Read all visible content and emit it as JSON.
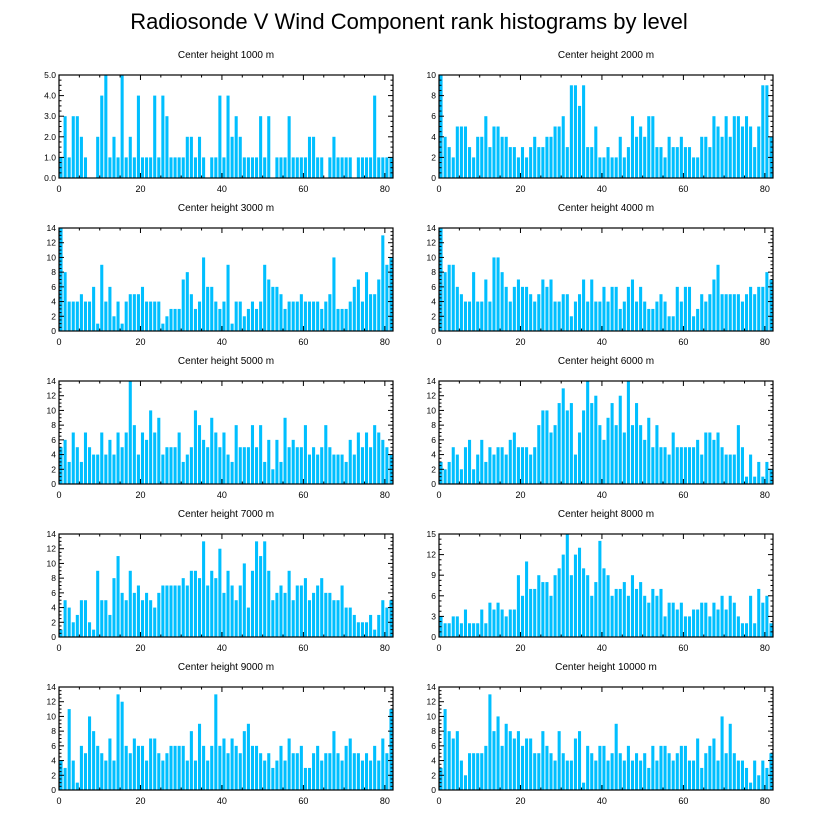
{
  "title": "Radiosonde V Wind Component rank histograms by level",
  "colors": {
    "bar": "#00bfff",
    "axis": "#000000",
    "background": "#ffffff"
  },
  "chart_data": [
    {
      "type": "bar",
      "title": "Center height 1000 m",
      "xlabel": "",
      "ylabel": "",
      "xlim": [
        0,
        82
      ],
      "ylim": [
        0,
        5
      ],
      "xticks": [
        0,
        20,
        40,
        60,
        80
      ],
      "yticks": [
        0,
        1,
        2,
        3,
        4,
        5
      ],
      "ytick_labels": [
        "0.0",
        "1.0",
        "2.0",
        "3.0",
        "4.0",
        "5.0"
      ],
      "values": [
        1,
        3,
        1,
        3,
        3,
        2,
        1,
        0,
        0,
        2,
        4,
        5,
        1,
        2,
        1,
        5,
        1,
        2,
        1,
        4,
        1,
        1,
        1,
        4,
        1,
        4,
        3,
        1,
        1,
        1,
        1,
        2,
        2,
        1,
        2,
        1,
        0,
        1,
        1,
        4,
        1,
        4,
        2,
        3,
        2,
        1,
        1,
        1,
        1,
        3,
        1,
        3,
        0,
        1,
        1,
        1,
        3,
        1,
        1,
        1,
        1,
        2,
        2,
        1,
        1,
        0,
        1,
        2,
        1,
        1,
        1,
        1,
        0,
        1,
        1,
        1,
        1,
        4,
        1,
        1,
        1,
        1
      ]
    },
    {
      "type": "bar",
      "title": "Center height 2000 m",
      "xlabel": "",
      "ylabel": "",
      "xlim": [
        0,
        82
      ],
      "ylim": [
        0,
        10
      ],
      "xticks": [
        0,
        20,
        40,
        60,
        80
      ],
      "yticks": [
        0,
        2,
        4,
        6,
        8,
        10
      ],
      "ytick_labels": [
        "0",
        "2",
        "4",
        "6",
        "8",
        "10"
      ],
      "values": [
        10,
        4,
        3,
        2,
        5,
        5,
        5,
        3,
        2,
        4,
        4,
        6,
        3,
        5,
        5,
        4,
        4,
        3,
        3,
        2,
        3,
        2,
        3,
        4,
        3,
        3,
        4,
        4,
        5,
        5,
        6,
        3,
        9,
        9,
        7,
        9,
        3,
        3,
        5,
        2,
        2,
        3,
        2,
        2,
        4,
        2,
        3,
        6,
        4,
        5,
        4,
        6,
        6,
        3,
        3,
        2,
        4,
        3,
        3,
        4,
        3,
        3,
        2,
        2,
        4,
        4,
        3,
        6,
        5,
        4,
        6,
        4,
        6,
        6,
        5,
        6,
        5,
        3,
        5,
        9,
        9,
        4
      ]
    },
    {
      "type": "bar",
      "title": "Center height 3000 m",
      "xlabel": "",
      "ylabel": "",
      "xlim": [
        0,
        82
      ],
      "ylim": [
        0,
        14
      ],
      "xticks": [
        0,
        20,
        40,
        60,
        80
      ],
      "yticks": [
        0,
        2,
        4,
        6,
        8,
        10,
        12,
        14
      ],
      "ytick_labels": [
        "0",
        "2",
        "4",
        "6",
        "8",
        "10",
        "12",
        "14"
      ],
      "values": [
        14,
        8,
        4,
        4,
        4,
        5,
        4,
        4,
        6,
        1,
        9,
        4,
        6,
        2,
        4,
        1,
        4,
        5,
        5,
        5,
        6,
        4,
        4,
        4,
        4,
        1,
        2,
        3,
        3,
        3,
        7,
        8,
        5,
        3,
        4,
        10,
        6,
        6,
        4,
        3,
        4,
        9,
        1,
        4,
        4,
        2,
        3,
        4,
        3,
        4,
        9,
        7,
        6,
        6,
        5,
        3,
        4,
        4,
        4,
        5,
        4,
        4,
        4,
        4,
        3,
        4,
        5,
        10,
        3,
        3,
        3,
        4,
        6,
        7,
        4,
        8,
        5,
        5,
        7,
        13,
        9,
        10
      ]
    },
    {
      "type": "bar",
      "title": "Center height 4000 m",
      "xlabel": "",
      "ylabel": "",
      "xlim": [
        0,
        82
      ],
      "ylim": [
        0,
        14
      ],
      "xticks": [
        0,
        20,
        40,
        60,
        80
      ],
      "yticks": [
        0,
        2,
        4,
        6,
        8,
        10,
        12,
        14
      ],
      "ytick_labels": [
        "0",
        "2",
        "4",
        "6",
        "8",
        "10",
        "12",
        "14"
      ],
      "values": [
        14,
        8,
        9,
        9,
        6,
        5,
        4,
        4,
        8,
        4,
        4,
        7,
        4,
        10,
        10,
        8,
        6,
        4,
        6,
        7,
        6,
        6,
        5,
        4,
        5,
        7,
        6,
        7,
        4,
        4,
        5,
        5,
        2,
        4,
        5,
        7,
        4,
        7,
        4,
        4,
        6,
        4,
        6,
        6,
        3,
        4,
        6,
        7,
        4,
        6,
        4,
        3,
        3,
        4,
        5,
        4,
        2,
        2,
        6,
        4,
        6,
        6,
        2,
        3,
        5,
        4,
        5,
        7,
        9,
        5,
        5,
        5,
        5,
        5,
        4,
        5,
        6,
        5,
        6,
        6,
        8,
        7
      ]
    },
    {
      "type": "bar",
      "title": "Center height 5000 m",
      "xlabel": "",
      "ylabel": "",
      "xlim": [
        0,
        82
      ],
      "ylim": [
        0,
        14
      ],
      "xticks": [
        0,
        20,
        40,
        60,
        80
      ],
      "yticks": [
        0,
        2,
        4,
        6,
        8,
        10,
        12,
        14
      ],
      "ytick_labels": [
        "0",
        "2",
        "4",
        "6",
        "8",
        "10",
        "12",
        "14"
      ],
      "values": [
        5,
        6,
        3,
        7,
        5,
        3,
        7,
        5,
        4,
        4,
        7,
        4,
        6,
        4,
        7,
        5,
        7,
        14,
        8,
        4,
        7,
        6,
        10,
        7,
        9,
        4,
        5,
        5,
        5,
        7,
        3,
        4,
        5,
        10,
        8,
        6,
        5,
        9,
        7,
        5,
        7,
        4,
        3,
        8,
        5,
        5,
        5,
        8,
        5,
        8,
        3,
        6,
        2,
        6,
        3,
        9,
        5,
        6,
        5,
        5,
        8,
        4,
        5,
        4,
        5,
        8,
        5,
        4,
        4,
        4,
        3,
        6,
        4,
        7,
        5,
        7,
        5,
        8,
        7,
        6,
        5,
        4
      ]
    },
    {
      "type": "bar",
      "title": "Center height 6000 m",
      "xlabel": "",
      "ylabel": "",
      "xlim": [
        0,
        82
      ],
      "ylim": [
        0,
        14
      ],
      "xticks": [
        0,
        20,
        40,
        60,
        80
      ],
      "yticks": [
        0,
        2,
        4,
        6,
        8,
        10,
        12,
        14
      ],
      "ytick_labels": [
        "0",
        "2",
        "4",
        "6",
        "8",
        "10",
        "12",
        "14"
      ],
      "values": [
        3,
        2,
        3,
        5,
        4,
        2,
        5,
        6,
        2,
        4,
        6,
        3,
        5,
        4,
        5,
        5,
        4,
        6,
        7,
        5,
        5,
        5,
        4,
        5,
        8,
        10,
        10,
        7,
        8,
        11,
        13,
        10,
        11,
        4,
        7,
        10,
        14,
        11,
        12,
        8,
        6,
        9,
        11,
        8,
        12,
        7,
        14,
        8,
        11,
        8,
        6,
        9,
        5,
        8,
        5,
        5,
        4,
        7,
        5,
        5,
        5,
        5,
        5,
        6,
        4,
        7,
        7,
        6,
        7,
        5,
        4,
        4,
        4,
        8,
        5,
        1,
        4,
        1,
        3,
        1,
        3,
        2
      ]
    },
    {
      "type": "bar",
      "title": "Center height 7000 m",
      "xlabel": "",
      "ylabel": "",
      "xlim": [
        0,
        82
      ],
      "ylim": [
        0,
        14
      ],
      "xticks": [
        0,
        20,
        40,
        60,
        80
      ],
      "yticks": [
        0,
        2,
        4,
        6,
        8,
        10,
        12,
        14
      ],
      "ytick_labels": [
        "0",
        "2",
        "4",
        "6",
        "8",
        "10",
        "12",
        "14"
      ],
      "values": [
        1,
        5,
        4,
        2,
        3,
        5,
        5,
        2,
        1,
        9,
        5,
        5,
        3,
        8,
        11,
        6,
        5,
        9,
        6,
        7,
        5,
        6,
        5,
        4,
        6,
        7,
        7,
        7,
        7,
        7,
        8,
        7,
        9,
        9,
        8,
        13,
        7,
        9,
        8,
        12,
        6,
        9,
        7,
        5,
        7,
        10,
        4,
        9,
        13,
        11,
        13,
        9,
        5,
        6,
        7,
        6,
        9,
        5,
        7,
        7,
        8,
        5,
        6,
        7,
        8,
        6,
        6,
        5,
        5,
        7,
        4,
        4,
        3,
        2,
        2,
        2,
        3,
        1,
        3,
        5,
        4,
        5
      ]
    },
    {
      "type": "bar",
      "title": "Center height 8000 m",
      "xlabel": "",
      "ylabel": "",
      "xlim": [
        0,
        82
      ],
      "ylim": [
        0,
        15
      ],
      "xticks": [
        0,
        20,
        40,
        60,
        80
      ],
      "yticks": [
        0,
        3,
        6,
        9,
        12,
        15
      ],
      "ytick_labels": [
        "0",
        "3",
        "6",
        "9",
        "12",
        "15"
      ],
      "values": [
        3,
        2,
        2,
        3,
        3,
        2,
        4,
        2,
        2,
        2,
        4,
        2,
        5,
        4,
        5,
        4,
        3,
        4,
        4,
        9,
        6,
        11,
        7,
        7,
        9,
        8,
        8,
        6,
        9,
        10,
        12,
        15,
        9,
        12,
        13,
        10,
        9,
        6,
        8,
        14,
        10,
        9,
        6,
        7,
        7,
        8,
        6,
        9,
        7,
        8,
        6,
        5,
        7,
        6,
        7,
        3,
        5,
        5,
        4,
        5,
        3,
        3,
        4,
        4,
        5,
        5,
        3,
        5,
        4,
        6,
        4,
        6,
        5,
        3,
        2,
        2,
        6,
        2,
        7,
        5,
        6,
        2
      ]
    },
    {
      "type": "bar",
      "title": "Center height 9000 m",
      "xlabel": "",
      "ylabel": "",
      "xlim": [
        0,
        82
      ],
      "ylim": [
        0,
        14
      ],
      "xticks": [
        0,
        20,
        40,
        60,
        80
      ],
      "yticks": [
        0,
        2,
        4,
        6,
        8,
        10,
        12,
        14
      ],
      "ytick_labels": [
        "0",
        "2",
        "4",
        "6",
        "8",
        "10",
        "12",
        "14"
      ],
      "values": [
        4,
        3,
        11,
        4,
        1,
        6,
        5,
        10,
        8,
        6,
        5,
        4,
        7,
        4,
        13,
        12,
        6,
        5,
        7,
        6,
        6,
        4,
        7,
        7,
        5,
        4,
        5,
        6,
        6,
        6,
        6,
        4,
        8,
        4,
        9,
        6,
        4,
        6,
        13,
        6,
        7,
        5,
        7,
        6,
        5,
        8,
        9,
        6,
        6,
        5,
        4,
        5,
        3,
        4,
        6,
        4,
        7,
        5,
        5,
        6,
        3,
        3,
        5,
        6,
        4,
        5,
        5,
        8,
        5,
        4,
        6,
        7,
        5,
        5,
        4,
        5,
        4,
        6,
        4,
        7,
        5,
        11
      ]
    },
    {
      "type": "bar",
      "title": "Center height 10000 m",
      "xlabel": "",
      "ylabel": "",
      "xlim": [
        0,
        82
      ],
      "ylim": [
        0,
        14
      ],
      "xticks": [
        0,
        20,
        40,
        60,
        80
      ],
      "yticks": [
        0,
        2,
        4,
        6,
        8,
        10,
        12,
        14
      ],
      "ytick_labels": [
        "0",
        "2",
        "4",
        "6",
        "8",
        "10",
        "12",
        "14"
      ],
      "values": [
        3,
        11,
        8,
        7,
        8,
        4,
        2,
        5,
        5,
        5,
        5,
        6,
        13,
        8,
        10,
        6,
        9,
        8,
        7,
        8,
        6,
        7,
        7,
        5,
        5,
        8,
        6,
        5,
        4,
        8,
        5,
        4,
        4,
        7,
        8,
        1,
        6,
        5,
        4,
        6,
        6,
        4,
        5,
        9,
        5,
        4,
        6,
        4,
        5,
        4,
        5,
        3,
        6,
        4,
        6,
        6,
        5,
        4,
        5,
        6,
        6,
        4,
        4,
        7,
        3,
        5,
        6,
        7,
        4,
        10,
        5,
        9,
        5,
        4,
        4,
        3,
        1,
        4,
        2,
        4,
        3,
        5
      ]
    }
  ]
}
